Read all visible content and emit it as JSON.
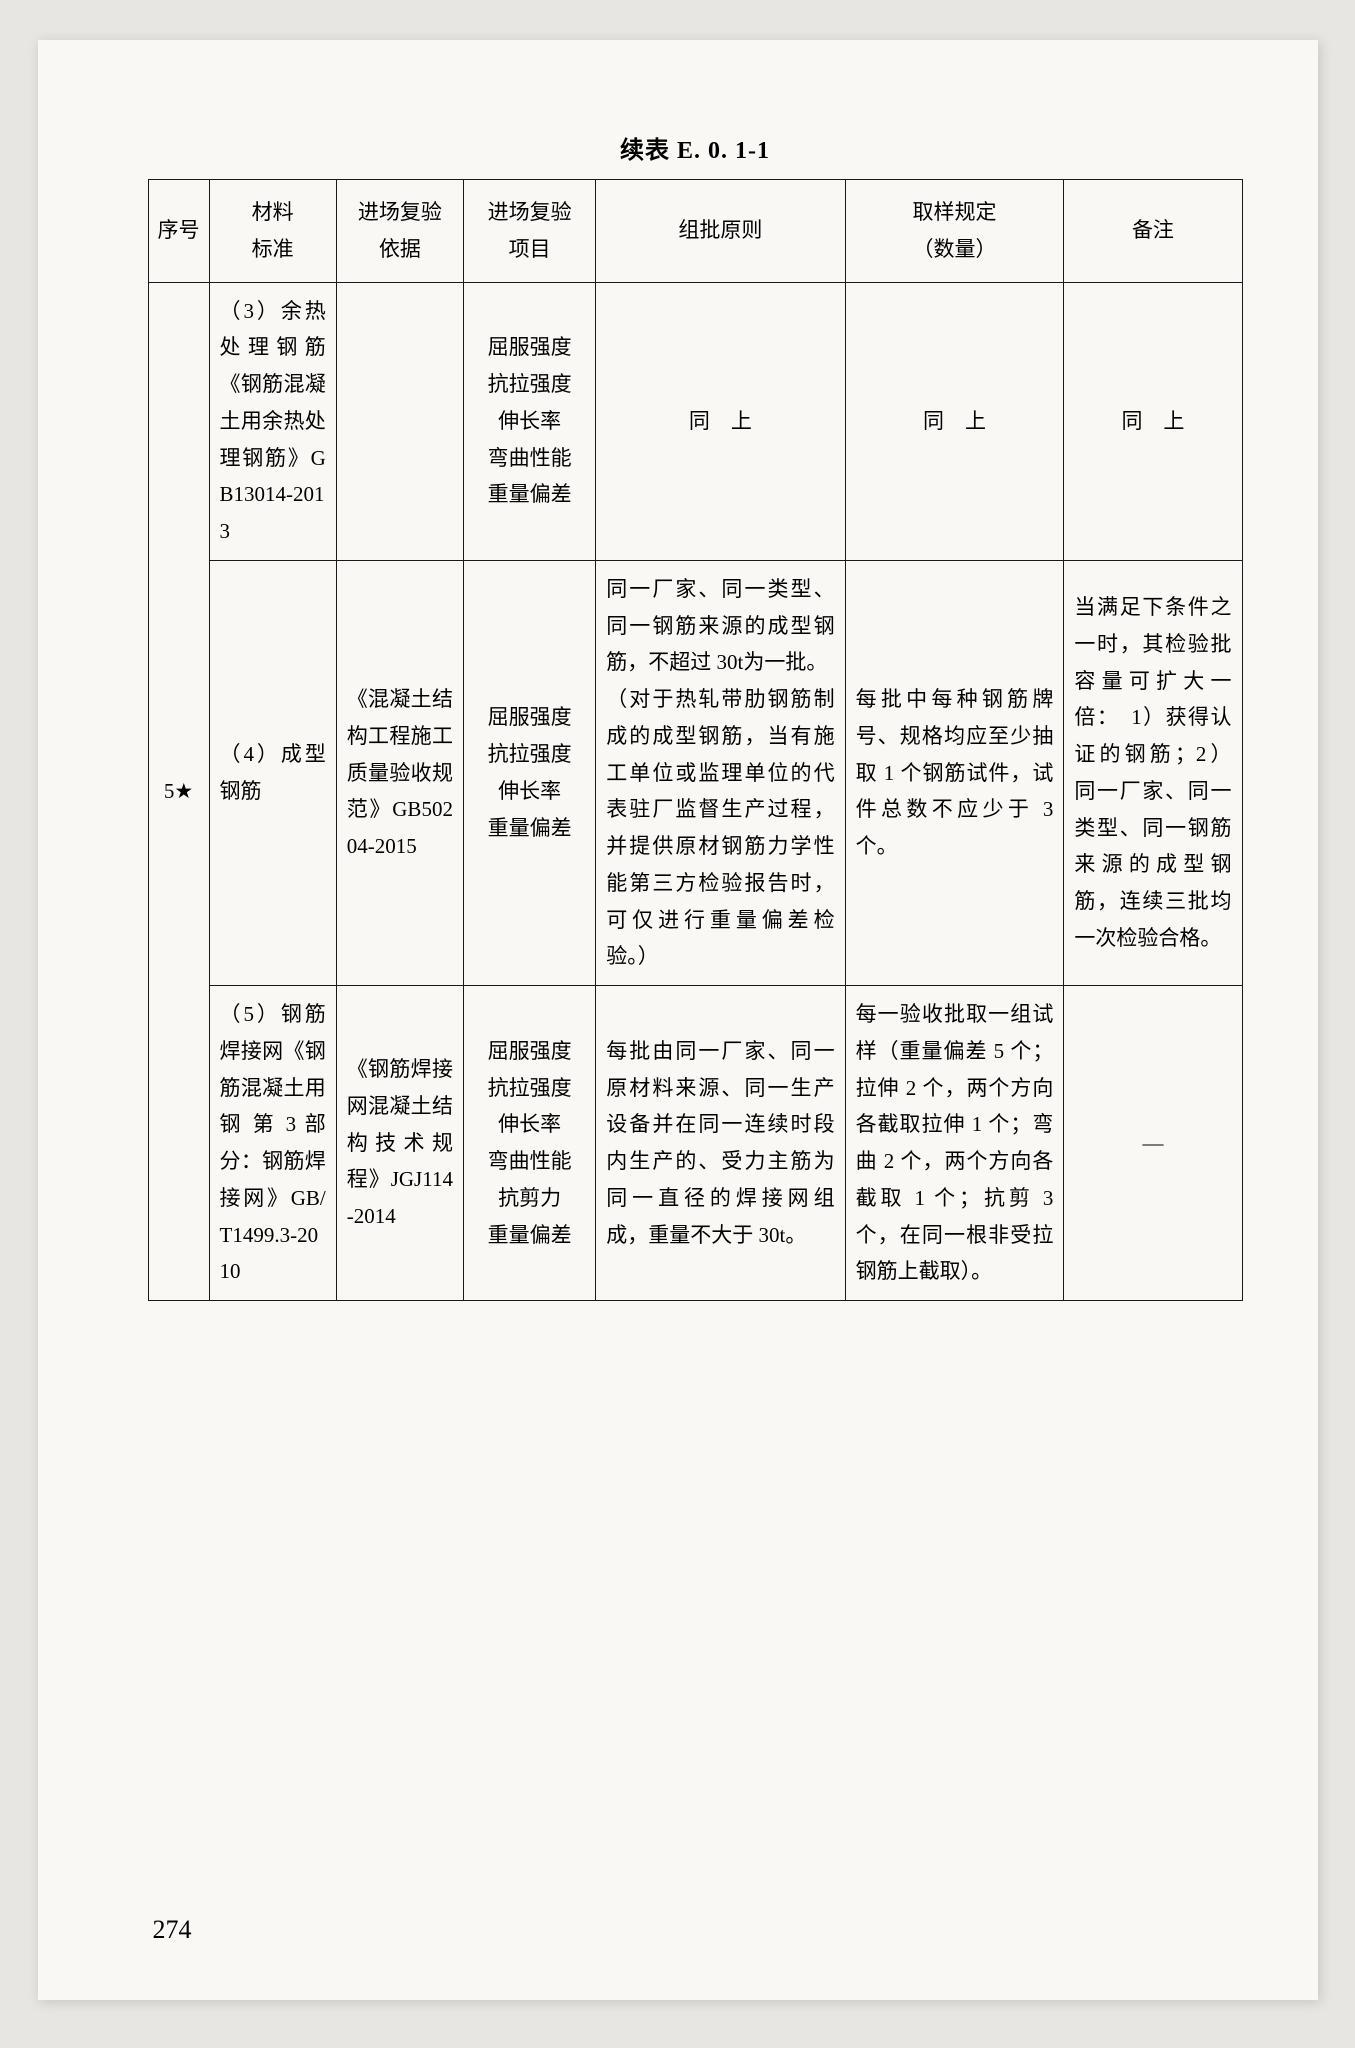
{
  "table_title": "续表 E. 0. 1-1",
  "page_number": "274",
  "headers": {
    "seq": "序号",
    "material_std": "材料\n标准",
    "inspection_basis": "进场复验\n依据",
    "inspection_items": "进场复验\n项目",
    "batch_principle": "组批原则",
    "sampling": "取样规定\n（数量）",
    "note": "备注"
  },
  "seq_label": "5★",
  "rows": [
    {
      "material_std": "（3）余热处理钢筋《钢筋混凝土用余热处理钢筋》GB13014-2013",
      "inspection_basis": "",
      "inspection_items": "屈服强度\n抗拉强度\n伸长率\n弯曲性能\n重量偏差",
      "batch_principle": "同　上",
      "sampling": "同　上",
      "note": "同　上"
    },
    {
      "material_std": "（4）成型钢筋",
      "inspection_basis": "《混凝土结构工程施工质量验收规范》GB50204-2015",
      "inspection_items": "屈服强度\n抗拉强度\n伸长率\n重量偏差",
      "batch_principle": "同一厂家、同一类型、同一钢筋来源的成型钢筋，不超过 30t为一批。\n（对于热轧带肋钢筋制成的成型钢筋，当有施工单位或监理单位的代表驻厂监督生产过程，并提供原材钢筋力学性能第三方检验报告时，可仅进行重量偏差检验。）",
      "sampling": "每批中每种钢筋牌号、规格均应至少抽取 1 个钢筋试件，试件总数不应少于 3 个。",
      "note": "当满足下条件之一时，其检验批容量可扩大一倍：　1）获得认证的钢筋；2）同一厂家、同一类型、同一钢筋来源的成型钢筋，连续三批均一次检验合格。"
    },
    {
      "material_std": "（5）钢筋焊接网《钢筋混凝土用钢 第 3 部分：钢筋焊接网》GB/T1499.3-2010",
      "inspection_basis": "《钢筋焊接网混凝土结构技术规程》JGJ114-2014",
      "inspection_items": "屈服强度\n抗拉强度\n伸长率\n弯曲性能\n抗剪力\n重量偏差",
      "batch_principle": "每批由同一厂家、同一原材料来源、同一生产设备并在同一连续时段内生产的、受力主筋为同一直径的焊接网组成，重量不大于 30t。",
      "sampling": "每一验收批取一组试样（重量偏差 5 个；拉伸 2 个，两个方向各截取拉伸 1 个；弯曲 2 个，两个方向各截取 1 个；抗剪 3 个，在同一根非受拉钢筋上截取）。",
      "note": "—"
    }
  ]
}
